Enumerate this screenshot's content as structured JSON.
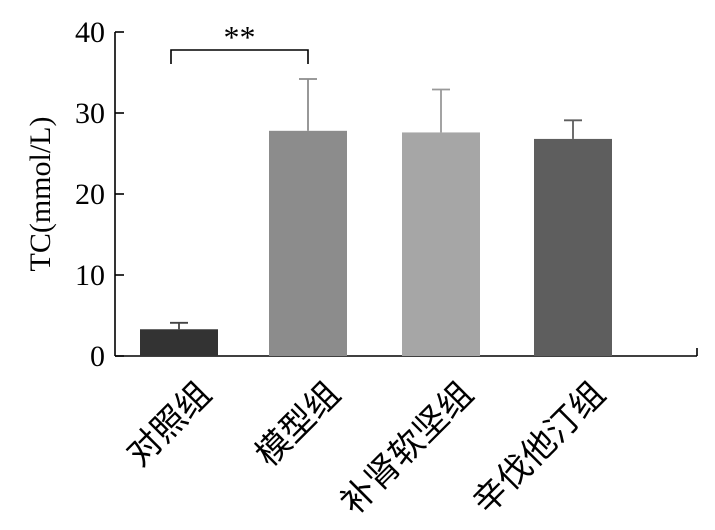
{
  "chart_data": {
    "type": "bar",
    "categories": [
      "对照组",
      "模型组",
      "补肾软坚组",
      "辛伐他汀组"
    ],
    "values": [
      3.3,
      27.8,
      27.6,
      26.8
    ],
    "errors": [
      0.8,
      6.4,
      5.3,
      2.3
    ],
    "colors": [
      "#333333",
      "#8c8c8c",
      "#a6a6a6",
      "#5e5e5e"
    ],
    "error_colors": [
      "#444444",
      "#8c8c8c",
      "#999999",
      "#5e5e5e"
    ],
    "ylabel": "TC(mmol/L)",
    "ylim": [
      0,
      40
    ],
    "yticks": [
      0,
      10,
      20,
      30,
      40
    ],
    "significance": {
      "from": 0,
      "to": 1,
      "label": "**"
    }
  }
}
